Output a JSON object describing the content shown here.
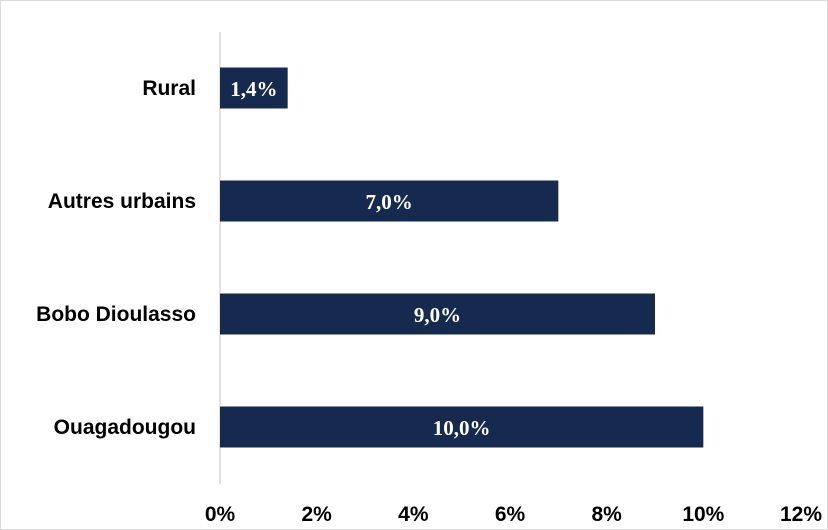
{
  "chart_data": {
    "type": "bar",
    "orientation": "horizontal",
    "categories": [
      "Rural",
      "Autres urbains",
      "Bobo Dioulasso",
      "Ouagadougou"
    ],
    "values": [
      1.4,
      7.0,
      9.0,
      10.0
    ],
    "data_labels": [
      "1,4%",
      "7,0%",
      "9,0%",
      "10,0%"
    ],
    "xlim": [
      0,
      12
    ],
    "x_ticks": [
      0,
      2,
      4,
      6,
      8,
      10,
      12
    ],
    "x_tick_labels": [
      "0%",
      "2%",
      "4%",
      "6%",
      "8%",
      "10%",
      "12%"
    ],
    "grid": false,
    "legend": "none",
    "bar_color": "#152a4e",
    "axis_color": "#d9d9d9"
  }
}
